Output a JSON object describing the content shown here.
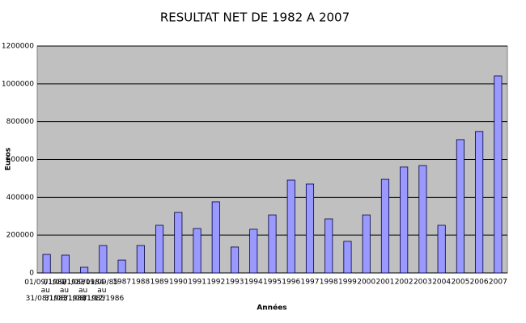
{
  "chart_data": {
    "type": "bar",
    "title": "RESULTAT NET DE 1982 A 2007",
    "x_label": "Années",
    "y_label": "Euros",
    "categories": [
      "01/09/1982 au 31/08/1983",
      "01/09/1983 au 31/08/1984",
      "01/09/1984 au 31/08/1985",
      "01/09/85 au 31/12/1986",
      "1987",
      "1988",
      "1989",
      "1990",
      "1991",
      "1992",
      "1993",
      "1994",
      "1995",
      "1996",
      "1997",
      "1998",
      "1999",
      "2000",
      "2001",
      "2002",
      "2003",
      "2004",
      "2005",
      "2006",
      "2007"
    ],
    "values": [
      98000,
      94000,
      30000,
      145000,
      68000,
      145000,
      252000,
      320000,
      235000,
      376000,
      137000,
      231000,
      307000,
      491000,
      470000,
      286000,
      167000,
      307000,
      495000,
      560000,
      568000,
      252000,
      705000,
      748000,
      1042000
    ],
    "color": "#9999ff",
    "ylim": [
      0,
      1200000
    ],
    "yticks": [
      0,
      200000,
      400000,
      600000,
      800000,
      1000000,
      1200000
    ],
    "grid": true
  }
}
